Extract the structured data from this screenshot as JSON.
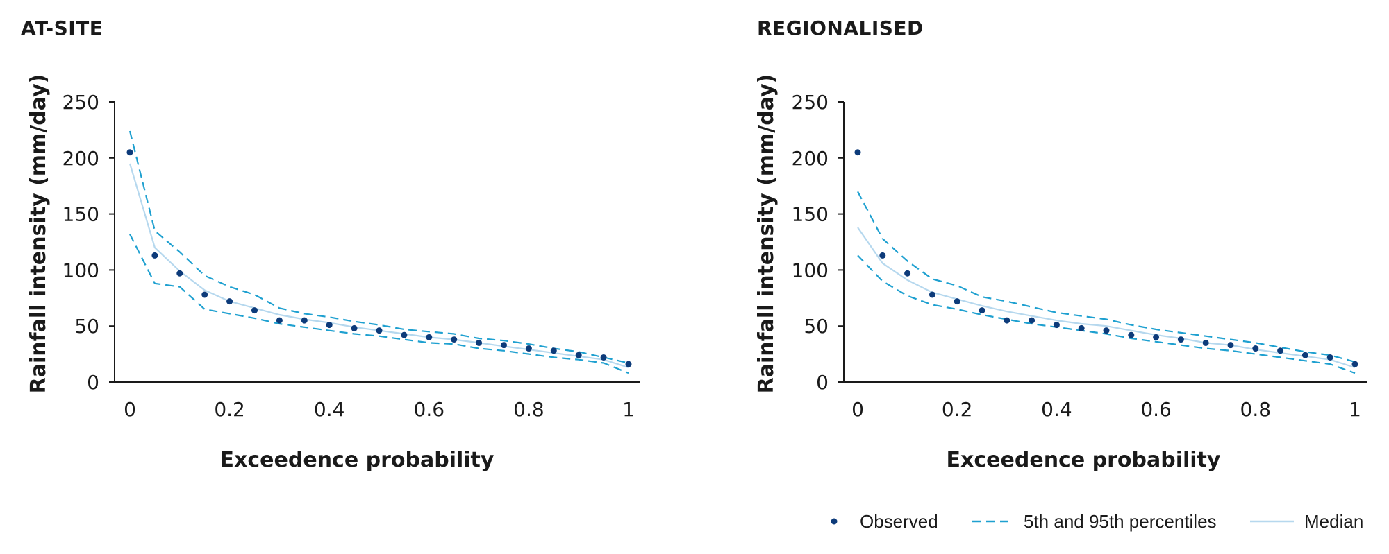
{
  "colors": {
    "observed": "#0d3b7a",
    "percentile": "#1ea0d0",
    "median": "#b6d8ee",
    "axis": "#1a1a1a"
  },
  "legend": {
    "observed": "Observed",
    "percentile": "5th and 95th percentiles",
    "median": "Median"
  },
  "chart_data": [
    {
      "type": "line",
      "title": "AT-SITE",
      "xlabel": "Exceedence probability",
      "ylabel": "Rainfall intensity (mm/day)",
      "xlim": [
        0,
        1
      ],
      "ylim": [
        0,
        250
      ],
      "xticks": [
        "0",
        "0.2",
        "0.4",
        "0.6",
        "0.8",
        "1"
      ],
      "yticks": [
        "0",
        "50",
        "100",
        "150",
        "200",
        "250"
      ],
      "grid": false,
      "observed": {
        "x": [
          0,
          0.05,
          0.1,
          0.15,
          0.2,
          0.25,
          0.3,
          0.35,
          0.4,
          0.45,
          0.5,
          0.55,
          0.6,
          0.65,
          0.7,
          0.75,
          0.8,
          0.85,
          0.9,
          0.95,
          1.0
        ],
        "y": [
          205,
          113,
          97,
          78,
          72,
          64,
          55,
          55,
          51,
          48,
          46,
          42,
          40,
          38,
          35,
          33,
          30,
          28,
          24,
          22,
          16
        ]
      },
      "series": [
        {
          "name": "5th and 95th percentiles",
          "x": [
            0,
            0.05,
            0.1,
            0.15,
            0.2,
            0.25,
            0.3,
            0.35,
            0.4,
            0.45,
            0.5,
            0.55,
            0.6,
            0.65,
            0.7,
            0.75,
            0.8,
            0.85,
            0.9,
            0.95,
            1.0
          ],
          "y": [
            224,
            135,
            116,
            95,
            85,
            78,
            66,
            61,
            58,
            54,
            51,
            47,
            45,
            43,
            39,
            37,
            34,
            30,
            27,
            22,
            17
          ]
        },
        {
          "name": "5th and 95th percentiles",
          "x": [
            0,
            0.05,
            0.1,
            0.15,
            0.2,
            0.25,
            0.3,
            0.35,
            0.4,
            0.45,
            0.5,
            0.55,
            0.6,
            0.65,
            0.7,
            0.75,
            0.8,
            0.85,
            0.9,
            0.95,
            1.0
          ],
          "y": [
            132,
            88,
            85,
            65,
            61,
            57,
            52,
            49,
            46,
            43,
            41,
            38,
            35,
            34,
            30,
            28,
            25,
            22,
            20,
            17,
            8
          ]
        },
        {
          "name": "Median",
          "x": [
            0,
            0.05,
            0.1,
            0.15,
            0.2,
            0.25,
            0.3,
            0.35,
            0.4,
            0.45,
            0.5,
            0.55,
            0.6,
            0.65,
            0.7,
            0.75,
            0.8,
            0.85,
            0.9,
            0.95,
            1.0
          ],
          "y": [
            195,
            120,
            99,
            82,
            72,
            66,
            60,
            56,
            53,
            49,
            46,
            43,
            40,
            38,
            35,
            32,
            29,
            26,
            23,
            20,
            13
          ]
        }
      ]
    },
    {
      "type": "line",
      "title": "REGIONALISED",
      "xlabel": "Exceedence probability",
      "ylabel": "Rainfall intensity (mm/day)",
      "xlim": [
        0,
        1
      ],
      "ylim": [
        0,
        250
      ],
      "xticks": [
        "0",
        "0.2",
        "0.4",
        "0.6",
        "0.8",
        "1"
      ],
      "yticks": [
        "0",
        "50",
        "100",
        "150",
        "200",
        "250"
      ],
      "grid": false,
      "observed": {
        "x": [
          0,
          0.05,
          0.1,
          0.15,
          0.2,
          0.25,
          0.3,
          0.35,
          0.4,
          0.45,
          0.5,
          0.55,
          0.6,
          0.65,
          0.7,
          0.75,
          0.8,
          0.85,
          0.9,
          0.95,
          1.0
        ],
        "y": [
          205,
          113,
          97,
          78,
          72,
          64,
          55,
          55,
          51,
          48,
          46,
          42,
          40,
          38,
          35,
          33,
          30,
          28,
          24,
          22,
          16
        ]
      },
      "series": [
        {
          "name": "5th and 95th percentiles",
          "x": [
            0,
            0.05,
            0.1,
            0.15,
            0.2,
            0.25,
            0.3,
            0.35,
            0.4,
            0.45,
            0.5,
            0.55,
            0.6,
            0.65,
            0.7,
            0.75,
            0.8,
            0.85,
            0.9,
            0.95,
            1.0
          ],
          "y": [
            170,
            128,
            108,
            92,
            86,
            76,
            72,
            67,
            62,
            59,
            56,
            51,
            47,
            44,
            41,
            38,
            35,
            31,
            27,
            24,
            18
          ]
        },
        {
          "name": "5th and 95th percentiles",
          "x": [
            0,
            0.05,
            0.1,
            0.15,
            0.2,
            0.25,
            0.3,
            0.35,
            0.4,
            0.45,
            0.5,
            0.55,
            0.6,
            0.65,
            0.7,
            0.75,
            0.8,
            0.85,
            0.9,
            0.95,
            1.0
          ],
          "y": [
            113,
            90,
            77,
            69,
            65,
            60,
            56,
            52,
            49,
            46,
            43,
            39,
            36,
            33,
            30,
            28,
            25,
            22,
            19,
            16,
            8
          ]
        },
        {
          "name": "Median",
          "x": [
            0,
            0.05,
            0.1,
            0.15,
            0.2,
            0.25,
            0.3,
            0.35,
            0.4,
            0.45,
            0.5,
            0.55,
            0.6,
            0.65,
            0.7,
            0.75,
            0.8,
            0.85,
            0.9,
            0.95,
            1.0
          ],
          "y": [
            138,
            106,
            91,
            80,
            74,
            68,
            63,
            59,
            55,
            52,
            50,
            46,
            42,
            39,
            35,
            33,
            29,
            26,
            23,
            20,
            13
          ]
        }
      ]
    }
  ]
}
